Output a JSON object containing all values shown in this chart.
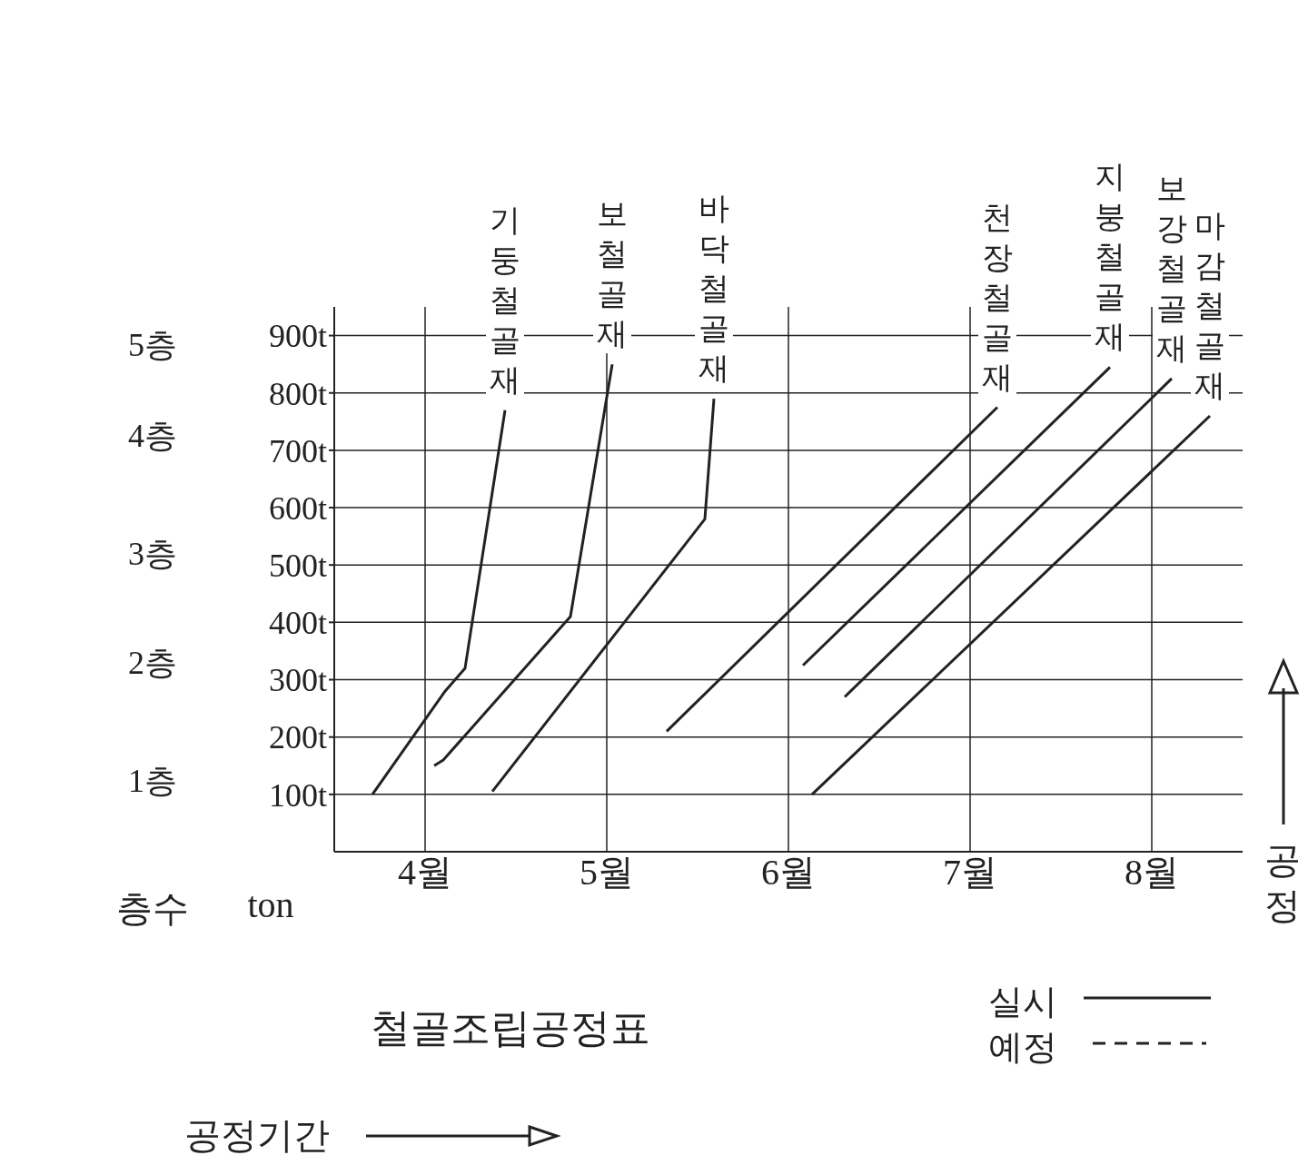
{
  "chart_data": {
    "type": "line",
    "title": "철골조립공정표",
    "annotations": [
      "5층",
      "4층",
      "3층",
      "2층",
      "1층",
      "층수",
      "ton",
      "실시",
      "예정",
      "공정기간",
      "공정"
    ],
    "xlim": [
      4,
      9
    ],
    "xticks": [
      {
        "value": 4.5,
        "label": "4월"
      },
      {
        "value": 5.5,
        "label": "5월"
      },
      {
        "value": 6.5,
        "label": "6월"
      },
      {
        "value": 7.5,
        "label": "7월"
      },
      {
        "value": 8.5,
        "label": "8월"
      }
    ],
    "ylim": [
      0,
      950
    ],
    "yticks": [
      {
        "value": 100,
        "label": "100t"
      },
      {
        "value": 200,
        "label": "200t"
      },
      {
        "value": 300,
        "label": "300t"
      },
      {
        "value": 400,
        "label": "400t"
      },
      {
        "value": 500,
        "label": "500t"
      },
      {
        "value": 600,
        "label": "600t"
      },
      {
        "value": 700,
        "label": "700t"
      },
      {
        "value": 800,
        "label": "800t"
      },
      {
        "value": 900,
        "label": "900t"
      }
    ],
    "grid": true,
    "marker": "none",
    "line_style": "solid",
    "series": [
      {
        "name": "기둥철골재",
        "color": "#222222",
        "x": [
          4.21,
          4.61,
          4.72,
          4.94
        ],
        "values": [
          100,
          280,
          320,
          770
        ]
      },
      {
        "name": "보철골재",
        "color": "#222222",
        "x": [
          4.55,
          4.6,
          5.3,
          5.53
        ],
        "values": [
          150,
          160,
          410,
          850
        ]
      },
      {
        "name": "바닥철골재",
        "color": "#222222",
        "x": [
          4.87,
          6.04,
          6.09
        ],
        "values": [
          105,
          580,
          790
        ]
      },
      {
        "name": "천장철골재",
        "color": "#222222",
        "x": [
          5.83,
          7.65
        ],
        "values": [
          210,
          775
        ]
      },
      {
        "name": "지붕철골재",
        "color": "#222222",
        "x": [
          6.58,
          8.27
        ],
        "values": [
          325,
          845
        ]
      },
      {
        "name": "보강철골재",
        "color": "#222222",
        "x": [
          6.81,
          8.61
        ],
        "values": [
          270,
          825
        ]
      },
      {
        "name": "마감철골재",
        "color": "#222222",
        "x": [
          6.63,
          8.82
        ],
        "values": [
          100,
          760
        ]
      }
    ]
  }
}
